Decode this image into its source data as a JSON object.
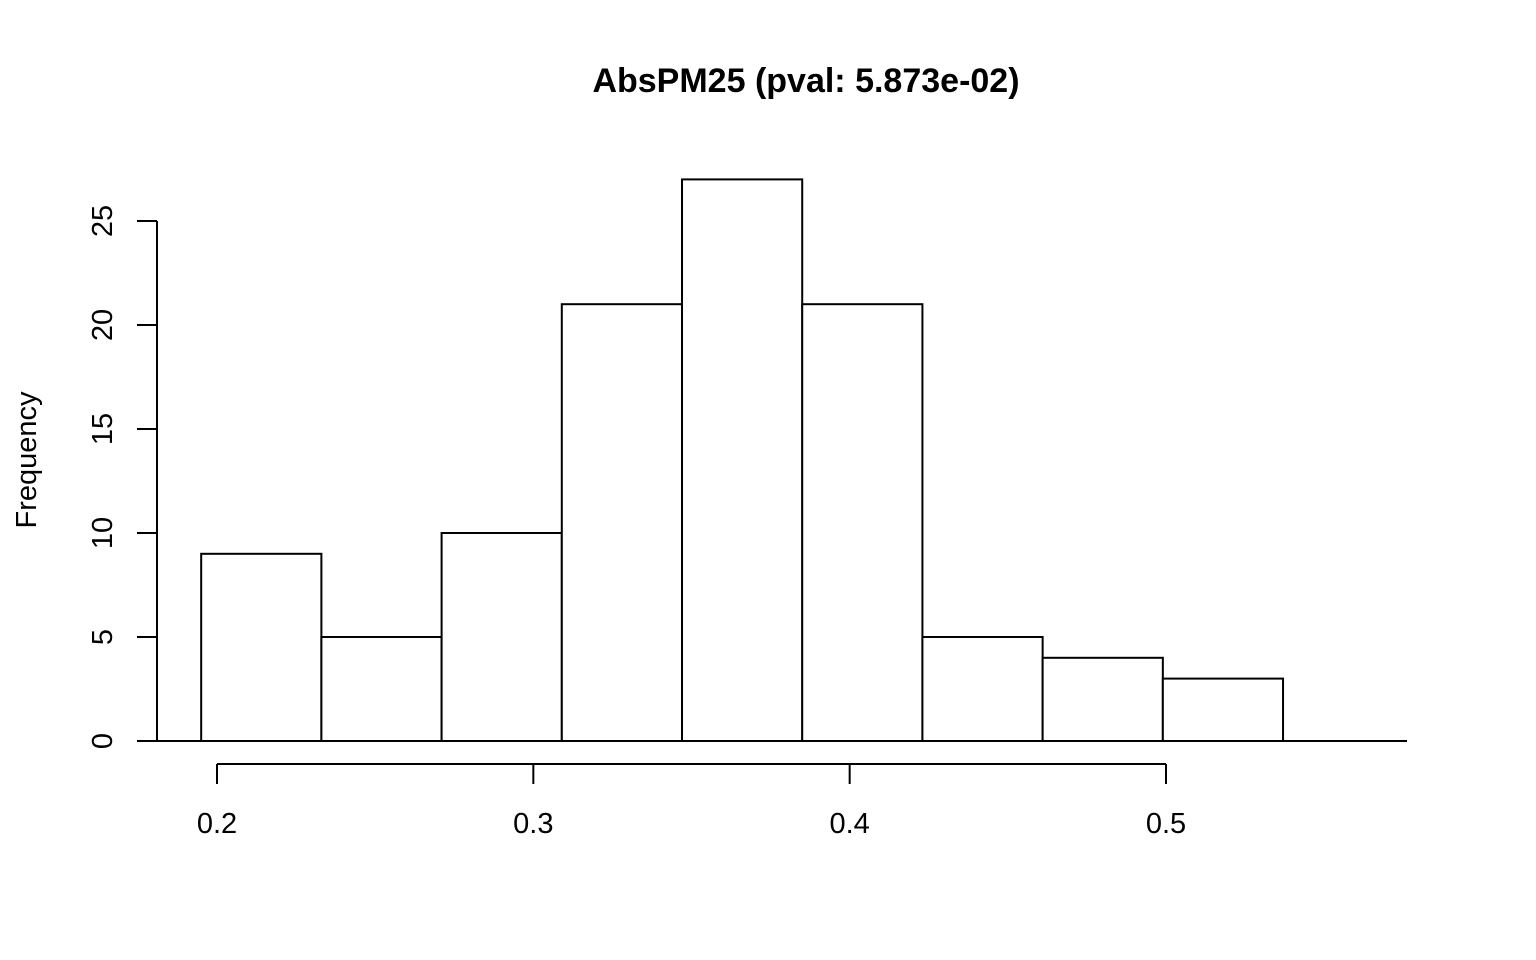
{
  "chart_data": {
    "type": "bar",
    "title": "AbsPM25 (pval: 5.873e-02)",
    "xlabel": "",
    "ylabel": "Frequency",
    "bins": [
      {
        "x0": 0.195,
        "x1": 0.233,
        "count": 9
      },
      {
        "x0": 0.233,
        "x1": 0.271,
        "count": 5
      },
      {
        "x0": 0.271,
        "x1": 0.309,
        "count": 10
      },
      {
        "x0": 0.309,
        "x1": 0.347,
        "count": 21
      },
      {
        "x0": 0.347,
        "x1": 0.385,
        "count": 27
      },
      {
        "x0": 0.385,
        "x1": 0.423,
        "count": 21
      },
      {
        "x0": 0.423,
        "x1": 0.461,
        "count": 5
      },
      {
        "x0": 0.461,
        "x1": 0.499,
        "count": 4
      },
      {
        "x0": 0.499,
        "x1": 0.537,
        "count": 3
      }
    ],
    "xticks": [
      0.2,
      0.3,
      0.4,
      0.5
    ],
    "xtick_labels": [
      "0.2",
      "0.3",
      "0.4",
      "0.5"
    ],
    "yticks": [
      0,
      5,
      10,
      15,
      20,
      25
    ],
    "ytick_labels": [
      "0",
      "5",
      "10",
      "15",
      "20",
      "25"
    ],
    "xlim": [
      0.2,
      0.5
    ],
    "ylim": [
      0,
      25
    ],
    "grid": false,
    "bar_fill": "#ffffff",
    "bar_stroke": "#000000"
  }
}
